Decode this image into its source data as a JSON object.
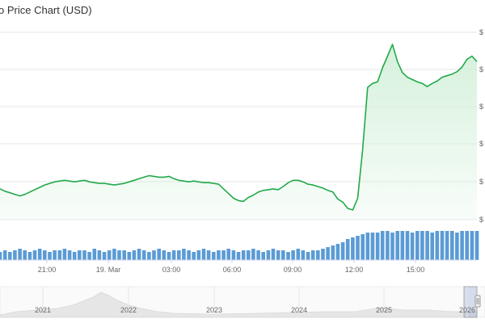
{
  "chart": {
    "title": "o Price Chart (USD)",
    "y_tick_prefix": "$",
    "x_ticks": [
      "21:00",
      "19. Mar",
      "03:00",
      "06:00",
      "09:00",
      "12:00",
      "15:00"
    ],
    "navigator_ticks": [
      "2021",
      "2022",
      "2023",
      "2024",
      "2025",
      "2026"
    ]
  },
  "colors": {
    "price_line": "#22a94b",
    "price_area": "#d3f0da",
    "volume_bar": "#5b9bd5",
    "grid": "#e6e6e6",
    "navigator_area": "#e6e6e6"
  },
  "chart_data": {
    "type": "line",
    "time_axis_start": "18 Mar 18:00 (approx.)",
    "series": [
      {
        "values": [
          175,
          172,
          170,
          168,
          166,
          168,
          171,
          174,
          177,
          180,
          182,
          184,
          185,
          186,
          185,
          184,
          185,
          186,
          184,
          183,
          182,
          182,
          181,
          180,
          181,
          182,
          184,
          186,
          188,
          190,
          192,
          191,
          190,
          190,
          191,
          188,
          186,
          185,
          184,
          185,
          184,
          183,
          183,
          182,
          181,
          175,
          169,
          163,
          160,
          159,
          164,
          167,
          171,
          173,
          174,
          175,
          174,
          178,
          183,
          186,
          186,
          184,
          181,
          180,
          178,
          176,
          173,
          171,
          162,
          158,
          150,
          148,
          163,
          225,
          305,
          310,
          312,
          330,
          345,
          360,
          338,
          324,
          318,
          315,
          312,
          310,
          306,
          310,
          313,
          318,
          320,
          322,
          325,
          331,
          341,
          345,
          338
        ]
      },
      {
        "values": [
          5,
          6,
          5,
          6,
          7,
          6,
          5,
          6,
          7,
          6,
          5,
          6,
          6,
          7,
          6,
          5,
          6,
          6,
          5,
          7,
          6,
          5,
          6,
          7,
          6,
          6,
          5,
          6,
          7,
          6,
          5,
          6,
          7,
          6,
          5,
          6,
          6,
          7,
          6,
          5,
          6,
          7,
          6,
          5,
          6,
          6,
          7,
          6,
          5,
          6,
          6,
          7,
          6,
          5,
          6,
          7,
          6,
          6,
          5,
          6,
          7,
          6,
          5,
          6,
          6,
          7,
          8,
          9,
          10,
          11,
          13,
          14,
          15,
          16,
          17,
          17,
          17,
          18,
          18,
          17,
          18,
          18,
          18,
          17,
          18,
          18,
          18,
          17,
          18,
          18,
          18,
          18,
          17,
          18,
          18,
          18,
          18
        ]
      }
    ]
  }
}
